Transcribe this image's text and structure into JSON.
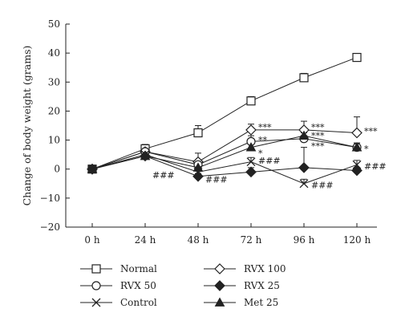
{
  "chart_data": {
    "type": "line",
    "ylabel": "Change of body weight (grams)",
    "xlabel": "",
    "categories": [
      "0 h",
      "24 h",
      "48 h",
      "72 h",
      "96 h",
      "120 h"
    ],
    "ylim": [
      -20,
      50
    ],
    "yticks": [
      -20,
      -10,
      0,
      10,
      20,
      30,
      40,
      50
    ],
    "grid": false,
    "legend_position": "bottom",
    "series": [
      {
        "name": "Normal",
        "marker": "square-open",
        "values": [
          0,
          7,
          12.5,
          23.5,
          31.5,
          38.5
        ],
        "err": [
          0,
          1.5,
          2.5,
          1.5,
          1.5,
          1
        ]
      },
      {
        "name": "RVX 100",
        "marker": "diamond-open",
        "values": [
          0,
          6,
          2.5,
          13.5,
          13.5,
          12.5
        ],
        "err": [
          0,
          1.5,
          3,
          2,
          3,
          5.5
        ]
      },
      {
        "name": "RVX 50",
        "marker": "circle-open",
        "values": [
          0,
          6,
          1.5,
          9.5,
          10.5,
          7.5
        ],
        "err": [
          0,
          1.5,
          1.5,
          2,
          2,
          1.5
        ]
      },
      {
        "name": "RVX 25",
        "marker": "diamond-filled",
        "values": [
          0,
          4.5,
          -2.5,
          -1,
          0.5,
          -0.5
        ],
        "err": [
          0,
          1,
          1,
          1.5,
          7,
          1
        ]
      },
      {
        "name": "Control",
        "marker": "x",
        "values": [
          0,
          5,
          -1,
          2.5,
          -5,
          1.5
        ],
        "err": [
          0,
          1,
          1,
          1.5,
          1.5,
          1.5
        ]
      },
      {
        "name": "Met 25",
        "marker": "triangle-filled",
        "values": [
          0,
          4.5,
          0.5,
          7.5,
          11.5,
          7.5
        ],
        "err": [
          0,
          1,
          1,
          1.5,
          1.5,
          1.5
        ]
      }
    ],
    "annotations": [
      {
        "text": "###",
        "category": "24 h",
        "y": -2
      },
      {
        "text": "###",
        "category": "48 h",
        "y": -3.5
      },
      {
        "text": "***",
        "category": "72 h",
        "y": 14.5
      },
      {
        "text": "**",
        "category": "72 h",
        "y": 10
      },
      {
        "text": "*",
        "category": "72 h",
        "y": 5.5
      },
      {
        "text": "###",
        "category": "72 h",
        "y": 3
      },
      {
        "text": "***",
        "category": "96 h",
        "y": 14.5
      },
      {
        "text": "***",
        "category": "96 h",
        "y": 11.5
      },
      {
        "text": "***",
        "category": "96 h",
        "y": 8
      },
      {
        "text": "###",
        "category": "96 h",
        "y": -5.5
      },
      {
        "text": "***",
        "category": "120 h",
        "y": 13
      },
      {
        "text": "*",
        "category": "120 h",
        "y": 7
      },
      {
        "text": "###",
        "category": "120 h",
        "y": 1
      }
    ]
  },
  "colors": {
    "line": "#222222"
  }
}
